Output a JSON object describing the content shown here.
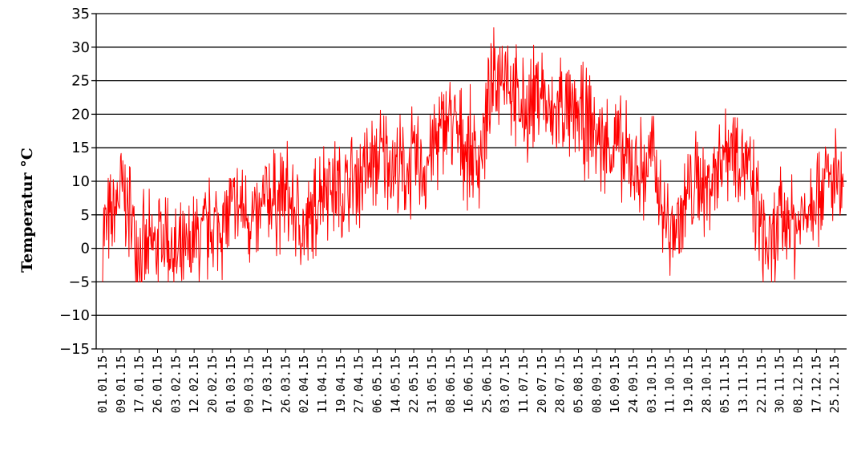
{
  "chart_data": {
    "type": "line",
    "title": "",
    "xlabel": "",
    "ylabel": "Temperatur °C",
    "ylim": [
      -15,
      35
    ],
    "yticks": [
      -15,
      -10,
      -5,
      0,
      5,
      10,
      15,
      20,
      25,
      30,
      35
    ],
    "grid": "horizontal",
    "legend": "none",
    "series_color": "#ff0000",
    "x_ticks": [
      "01.01.15",
      "09.01.15",
      "17.01.15",
      "26.01.15",
      "03.02.15",
      "12.02.15",
      "20.02.15",
      "01.03.15",
      "09.03.15",
      "17.03.15",
      "26.03.15",
      "02.04.15",
      "11.04.15",
      "19.04.15",
      "27.04.15",
      "06.05.15",
      "14.05.15",
      "22.05.15",
      "31.05.15",
      "08.06.15",
      "16.06.15",
      "25.06.15",
      "03.07.15",
      "11.07.15",
      "20.07.15",
      "28.07.15",
      "05.08.15",
      "08.09.15",
      "16.09.15",
      "24.09.15",
      "03.10.15",
      "11.10.15",
      "19.10.15",
      "28.10.15",
      "05.11.15",
      "13.11.15",
      "22.11.15",
      "30.11.15",
      "08.12.15",
      "17.12.15",
      "25.12.15"
    ],
    "series": [
      {
        "values_note": "",
        "x": [
          "01.01.15",
          "05.01.15",
          "09.01.15",
          "13.01.15",
          "17.01.15",
          "21.01.15",
          "26.01.15",
          "30.01.15",
          "03.02.15",
          "07.02.15",
          "12.02.15",
          "16.02.15",
          "20.02.15",
          "25.02.15",
          "01.03.15",
          "05.03.15",
          "09.03.15",
          "13.03.15",
          "17.03.15",
          "21.03.15",
          "26.03.15",
          "30.03.15",
          "02.04.15",
          "07.04.15",
          "11.04.15",
          "15.04.15",
          "19.04.15",
          "23.04.15",
          "27.04.15",
          "02.05.15",
          "06.05.15",
          "10.05.15",
          "14.05.15",
          "18.05.15",
          "22.05.15",
          "27.05.15",
          "31.05.15",
          "04.06.15",
          "08.06.15",
          "12.06.15",
          "16.06.15",
          "21.06.15",
          "25.06.15",
          "29.06.15",
          "03.07.15",
          "07.07.15",
          "11.07.15",
          "16.07.15",
          "20.07.15",
          "24.07.15",
          "28.07.15",
          "01.08.15",
          "05.08.15",
          "08.09.15",
          "12.09.15",
          "16.09.15",
          "20.09.15",
          "24.09.15",
          "29.09.15",
          "03.10.15",
          "07.10.15",
          "11.10.15",
          "15.10.15",
          "19.10.15",
          "24.10.15",
          "28.10.15",
          "01.11.15",
          "05.11.15",
          "09.11.15",
          "13.11.15",
          "18.11.15",
          "22.11.15",
          "26.11.15",
          "30.11.15",
          "04.12.15",
          "08.12.15",
          "13.12.15",
          "17.12.15",
          "21.12.15",
          "25.12.15",
          "29.12.15"
        ],
        "values": [
          3,
          3.5,
          9,
          5,
          0,
          -1,
          1,
          2,
          -2,
          -2,
          1,
          2,
          3,
          4,
          5,
          6,
          5,
          3,
          8,
          7,
          8,
          5,
          2,
          5,
          10,
          10,
          8,
          9,
          11,
          12,
          13,
          14,
          12,
          11,
          13,
          12,
          15,
          17,
          20,
          16,
          15,
          13,
          20,
          25,
          28,
          22,
          20,
          22,
          24,
          18,
          22,
          19,
          20,
          17,
          15,
          16,
          13,
          13,
          11,
          14,
          7,
          2,
          4,
          8,
          10,
          9,
          12,
          15,
          16,
          14,
          8,
          3,
          -1,
          4,
          5,
          3,
          7,
          9,
          10,
          10,
          8
        ]
      }
    ]
  }
}
